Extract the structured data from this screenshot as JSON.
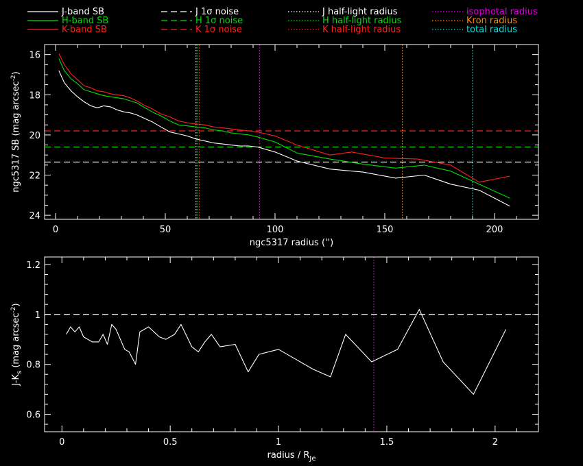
{
  "colors": {
    "J": "#ffffff",
    "H": "#00e000",
    "K": "#ff2020",
    "isophotal": "#e000e0",
    "kron": "#ff8c00",
    "total": "#00e0e0",
    "background": "#000000",
    "axes": "#ffffff"
  },
  "legend": [
    {
      "label": "J-band SB",
      "style": "solid",
      "color_key": "J"
    },
    {
      "label": "H-band SB",
      "style": "solid",
      "color_key": "H"
    },
    {
      "label": "K-band SB",
      "style": "solid",
      "color_key": "K"
    },
    {
      "label": "J 1σ noise",
      "style": "dashed",
      "color_key": "J"
    },
    {
      "label": "H 1σ noise",
      "style": "dashed",
      "color_key": "H"
    },
    {
      "label": "K 1σ noise",
      "style": "dashed",
      "color_key": "K"
    },
    {
      "label": "J half-light radius",
      "style": "dotted",
      "color_key": "J"
    },
    {
      "label": "H half-light radius",
      "style": "dotted",
      "color_key": "H"
    },
    {
      "label": "K half-light radius",
      "style": "dotted",
      "color_key": "K"
    },
    {
      "label": "isophotal radius",
      "style": "dotted",
      "color_key": "isophotal"
    },
    {
      "label": "Kron radius",
      "style": "dotted",
      "color_key": "kron"
    },
    {
      "label": "total radius",
      "style": "dotted",
      "color_key": "total"
    }
  ],
  "chart_data": [
    {
      "type": "line",
      "xlabel": "ngc5317 radius ('')",
      "ylabel": "ngc5317 SB (mag arcsec⁻²)",
      "xlim": [
        -5,
        220
      ],
      "ylim": [
        24.2,
        15.5
      ],
      "y_inverted": true,
      "xticks": [
        0,
        50,
        100,
        150,
        200
      ],
      "yticks": [
        16,
        18,
        20,
        22,
        24
      ],
      "series": [
        {
          "name": "J-band SB",
          "color_key": "J",
          "style": "solid",
          "x": [
            1.5,
            4,
            7,
            10,
            13,
            16,
            19,
            22,
            25,
            28,
            31,
            34,
            37,
            40,
            44,
            48,
            52,
            56,
            60,
            64,
            68,
            72,
            76,
            80,
            84,
            88,
            92,
            100,
            110,
            125,
            140,
            155,
            168,
            180,
            193,
            207
          ],
          "y": [
            16.8,
            17.4,
            17.8,
            18.1,
            18.35,
            18.55,
            18.65,
            18.55,
            18.6,
            18.75,
            18.85,
            18.9,
            19.0,
            19.15,
            19.35,
            19.6,
            19.85,
            19.95,
            20.05,
            20.2,
            20.3,
            20.4,
            20.45,
            20.5,
            20.55,
            20.55,
            20.6,
            20.85,
            21.3,
            21.7,
            21.85,
            22.15,
            22.0,
            22.45,
            22.75,
            23.55
          ]
        },
        {
          "name": "H-band SB",
          "color_key": "H",
          "style": "solid",
          "x": [
            1.5,
            4,
            7,
            10,
            13,
            16,
            19,
            22,
            25,
            28,
            31,
            34,
            37,
            40,
            44,
            48,
            52,
            56,
            60,
            64,
            68,
            72,
            76,
            80,
            84,
            88,
            92,
            100,
            110,
            125,
            140,
            155,
            168,
            180,
            193,
            207
          ],
          "y": [
            16.2,
            16.8,
            17.2,
            17.45,
            17.75,
            17.85,
            17.95,
            18.05,
            18.1,
            18.15,
            18.2,
            18.3,
            18.4,
            18.6,
            18.85,
            19.05,
            19.3,
            19.5,
            19.55,
            19.6,
            19.65,
            19.75,
            19.8,
            19.9,
            19.95,
            20.0,
            20.1,
            20.35,
            20.9,
            21.2,
            21.45,
            21.65,
            21.5,
            21.8,
            22.45,
            23.15
          ]
        },
        {
          "name": "K-band SB",
          "color_key": "K",
          "style": "solid",
          "x": [
            1.5,
            4,
            7,
            10,
            13,
            16,
            19,
            22,
            25,
            28,
            31,
            34,
            37,
            40,
            44,
            48,
            52,
            56,
            60,
            64,
            68,
            72,
            76,
            80,
            84,
            88,
            92,
            100,
            110,
            125,
            135,
            150,
            165,
            180,
            193,
            207
          ],
          "y": [
            15.95,
            16.5,
            16.95,
            17.25,
            17.55,
            17.65,
            17.8,
            17.85,
            17.95,
            18.0,
            18.05,
            18.15,
            18.3,
            18.5,
            18.7,
            18.95,
            19.1,
            19.3,
            19.4,
            19.45,
            19.5,
            19.6,
            19.65,
            19.7,
            19.75,
            19.8,
            19.85,
            20.05,
            20.5,
            21.0,
            20.85,
            21.15,
            21.2,
            21.5,
            22.35,
            22.05
          ]
        }
      ],
      "hlines": [
        {
          "label": "J 1σ noise",
          "y": 21.35,
          "color_key": "J"
        },
        {
          "label": "H 1σ noise",
          "y": 20.6,
          "color_key": "H"
        },
        {
          "label": "K 1σ noise",
          "y": 19.8,
          "color_key": "K"
        }
      ],
      "vlines": [
        {
          "label": "J half-light radius",
          "x": 64.0,
          "color_key": "J"
        },
        {
          "label": "H half-light radius",
          "x": 64.8,
          "color_key": "H"
        },
        {
          "label": "K half-light radius",
          "x": 65.5,
          "color_key": "K"
        },
        {
          "label": "isophotal radius",
          "x": 93.0,
          "color_key": "isophotal"
        },
        {
          "label": "Kron radius",
          "x": 158.0,
          "color_key": "kron"
        },
        {
          "label": "total radius",
          "x": 190.0,
          "color_key": "total"
        }
      ]
    },
    {
      "type": "line",
      "xlabel": "radius / R_Je",
      "ylabel": "J-K_s (mag arcsec⁻²)",
      "xlim": [
        -0.08,
        2.2
      ],
      "ylim": [
        0.53,
        1.23
      ],
      "xticks": [
        0,
        0.5,
        1,
        1.5,
        2
      ],
      "yticks": [
        0.6,
        0.8,
        1,
        1.2
      ],
      "series": [
        {
          "name": "J-K",
          "color_key": "J",
          "style": "solid",
          "x": [
            0.02,
            0.04,
            0.06,
            0.08,
            0.1,
            0.14,
            0.17,
            0.19,
            0.21,
            0.23,
            0.25,
            0.27,
            0.29,
            0.31,
            0.34,
            0.36,
            0.4,
            0.45,
            0.48,
            0.52,
            0.55,
            0.6,
            0.63,
            0.66,
            0.69,
            0.73,
            0.8,
            0.86,
            0.91,
            1.0,
            1.06,
            1.16,
            1.24,
            1.31,
            1.43,
            1.55,
            1.65,
            1.76,
            1.9,
            2.05
          ],
          "y": [
            0.92,
            0.95,
            0.93,
            0.95,
            0.91,
            0.89,
            0.89,
            0.92,
            0.88,
            0.96,
            0.94,
            0.9,
            0.86,
            0.85,
            0.8,
            0.93,
            0.95,
            0.91,
            0.9,
            0.92,
            0.96,
            0.87,
            0.85,
            0.89,
            0.92,
            0.87,
            0.88,
            0.77,
            0.84,
            0.86,
            0.83,
            0.78,
            0.75,
            0.92,
            0.81,
            0.86,
            1.02,
            0.81,
            0.68,
            0.94
          ]
        }
      ],
      "hlines": [
        {
          "label": "",
          "y": 1.0,
          "color_key": "J"
        }
      ],
      "vlines": [
        {
          "label": "isophotal radius",
          "x": 1.44,
          "color_key": "isophotal"
        }
      ]
    }
  ]
}
